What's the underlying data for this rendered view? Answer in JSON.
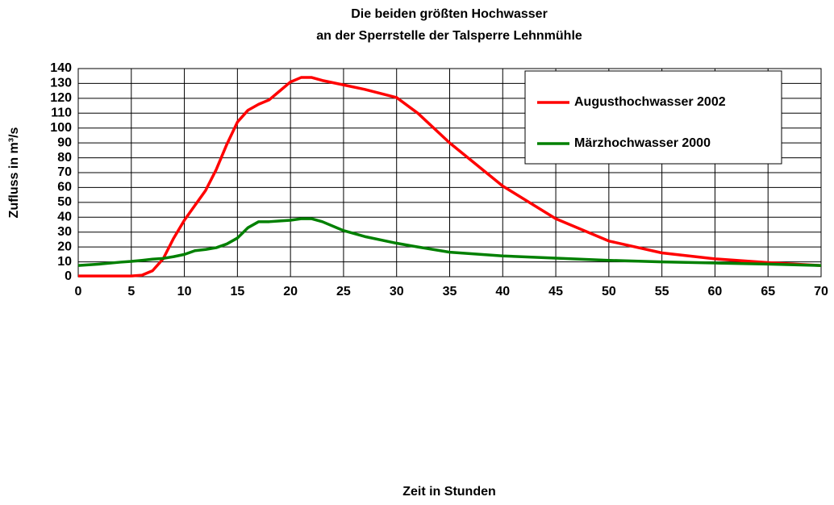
{
  "chart_data": {
    "type": "line",
    "title": [
      "Die beiden größten Hochwasser",
      "an der Sperrstelle der Talsperre Lehnmühle"
    ],
    "xlabel": "Zeit in Stunden",
    "ylabel": "Zufluss in m³/s",
    "x": [
      0,
      2,
      4,
      5,
      6,
      7,
      8,
      9,
      10,
      11,
      12,
      13,
      14,
      15,
      16,
      17,
      18,
      19,
      20,
      21,
      22,
      23,
      25,
      27,
      30,
      32,
      35,
      40,
      45,
      50,
      55,
      60,
      65,
      70
    ],
    "series": [
      {
        "name": "Augusthochwasser 2002",
        "color": "#ff0000",
        "values": [
          0.5,
          0.5,
          0.5,
          0.5,
          1,
          4,
          12,
          26,
          38,
          48,
          58,
          72,
          89,
          104,
          112,
          116,
          119,
          125,
          131,
          134,
          134,
          132,
          129,
          126,
          120.5,
          110,
          90,
          61,
          39,
          24,
          16,
          12,
          9.5,
          7.5
        ]
      },
      {
        "name": "Märzhochwasser 2000",
        "color": "#008000",
        "values": [
          7.5,
          8.5,
          9.8,
          10.3,
          11,
          11.8,
          12.3,
          13.5,
          15,
          17.5,
          18.3,
          19.5,
          22,
          26,
          33,
          37,
          37,
          37.5,
          38,
          39,
          39,
          37,
          31,
          27,
          22.5,
          20,
          16.5,
          14,
          12.5,
          11,
          10,
          9.2,
          8.5,
          7.5
        ]
      }
    ],
    "xlim": [
      0,
      70
    ],
    "xticks": [
      0,
      5,
      10,
      15,
      20,
      25,
      30,
      35,
      40,
      45,
      50,
      55,
      60,
      65,
      70
    ],
    "ylim": [
      0,
      140
    ],
    "yticks": [
      0,
      10,
      20,
      30,
      40,
      50,
      60,
      70,
      80,
      90,
      100,
      110,
      120,
      130,
      140
    ],
    "grid": true,
    "legend": "upper right"
  }
}
